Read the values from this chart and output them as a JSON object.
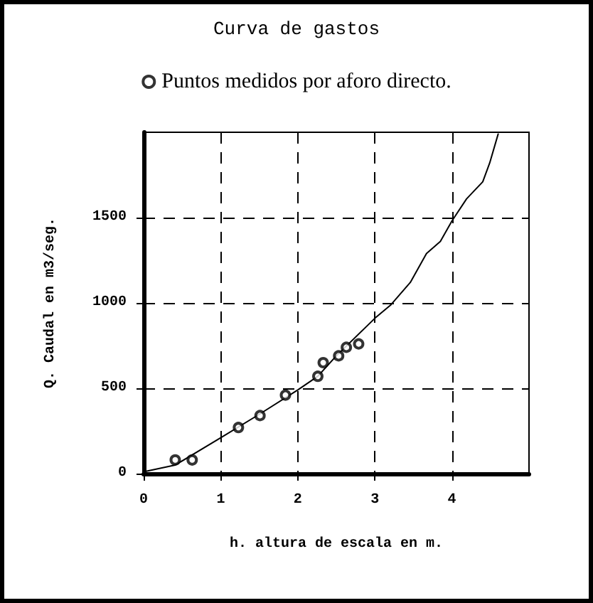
{
  "chart_data": {
    "type": "line",
    "title": "Curva de gastos",
    "xlabel": "h. altura de escala en m.",
    "ylabel": "Q. Caudal en m3/seg.",
    "xlim": [
      0,
      5
    ],
    "xticks": [
      0,
      1,
      2,
      3,
      4
    ],
    "ylim": [
      0,
      2000
    ],
    "yticks": [
      0,
      500,
      1000,
      1500
    ],
    "grid": true,
    "legend": "top",
    "series": [
      {
        "color": "#000000",
        "marker": "none",
        "x": [
          0,
          0.41,
          1,
          1.51,
          2,
          2.26,
          2.5,
          3,
          3.21,
          3.46,
          3.67,
          3.85,
          4,
          4.19,
          4.4,
          4.49,
          4.6
        ],
        "values": [
          10,
          50,
          210,
          350,
          490,
          570,
          690,
          910,
          990,
          1120,
          1290,
          1360,
          1480,
          1610,
          1710,
          1820,
          1990
        ]
      },
      {
        "type": "scatter",
        "name": "Puntos medidos por aforo directo.",
        "color": "#000000",
        "marker": "circle",
        "x": [
          0.41,
          0.63,
          1.23,
          1.51,
          1.84,
          2.26,
          2.33,
          2.53,
          2.63,
          2.79
        ],
        "values": [
          80,
          80,
          270,
          340,
          460,
          570,
          650,
          690,
          740,
          760
        ]
      }
    ]
  }
}
